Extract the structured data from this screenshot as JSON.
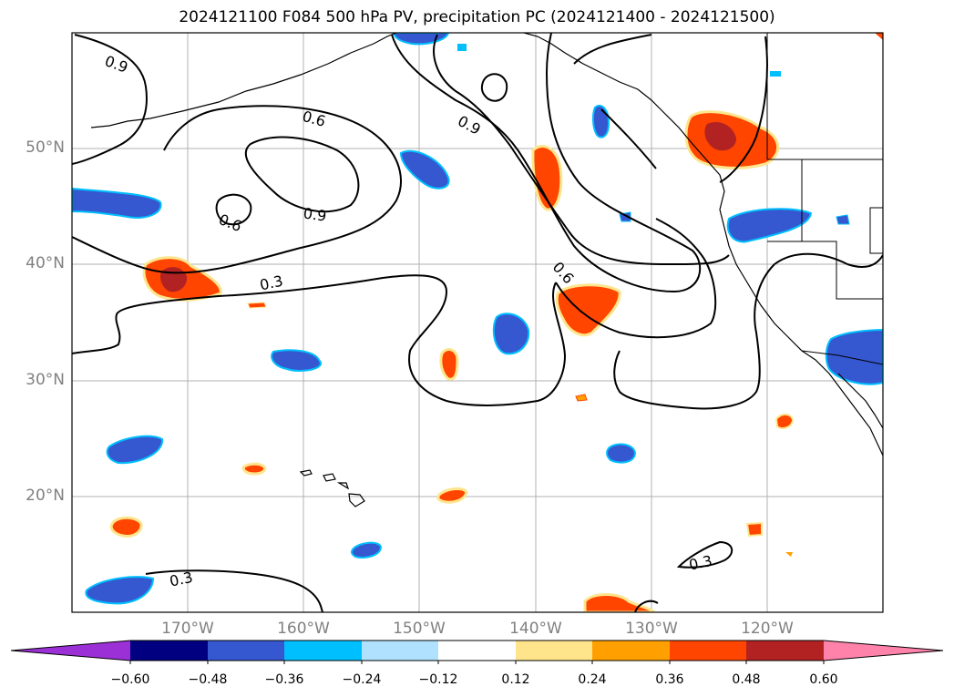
{
  "title": "2024121100 F084 500 hPa PV, precipitation PC (2024121400 - 2024121500)",
  "latitude_labels": [
    "50°N",
    "40°N",
    "30°N",
    "20°N"
  ],
  "longitude_labels": [
    "170°W",
    "160°W",
    "150°W",
    "140°W",
    "130°W",
    "120°W"
  ],
  "contour_labels": [
    "0.9",
    "0.6",
    "0.9",
    "0.6",
    "0.9",
    "0.3",
    "0.6",
    "0.3",
    "0.3"
  ],
  "colorbar": {
    "colors": [
      "#9b30d6",
      "#000080",
      "#3557cf",
      "#00bfff",
      "#b0e2ff",
      "#ffffff",
      "#fee58c",
      "#ffa000",
      "#ff4500",
      "#b22222",
      "#ff82ab"
    ],
    "tick_labels": [
      "−0.60",
      "−0.48",
      "−0.36",
      "−0.24",
      "−0.12",
      "0.12",
      "0.24",
      "0.36",
      "0.48",
      "0.60"
    ]
  }
}
